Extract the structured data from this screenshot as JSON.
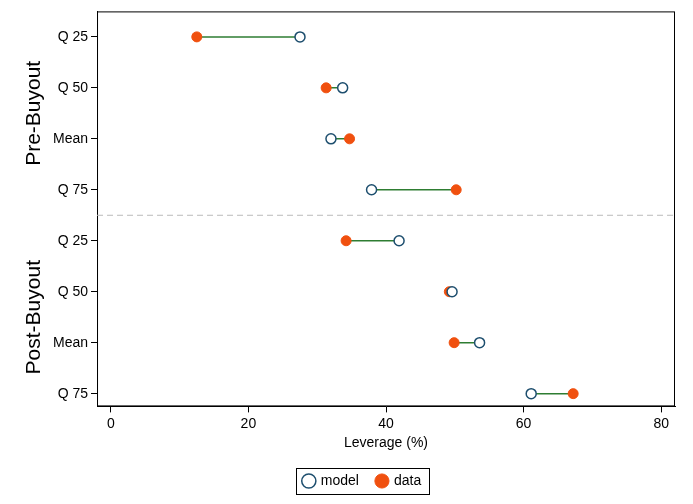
{
  "chart_data": {
    "type": "dumbbell",
    "orientation": "horizontal",
    "x_label": "Leverage (%)",
    "groups": [
      {
        "name": "Pre-Buyout",
        "categories": [
          "Q 25",
          "Q 50",
          "Mean",
          "Q 75"
        ]
      },
      {
        "name": "Post-Buyout",
        "categories": [
          "Q 25",
          "Q 50",
          "Mean",
          "Q 75"
        ]
      }
    ],
    "series": [
      {
        "name": "data",
        "color": "#f0500f",
        "marker": "filled_circle",
        "values": [
          12.5,
          31.3,
          34.7,
          50.2,
          34.2,
          49.2,
          49.9,
          67.2
        ]
      },
      {
        "name": "model",
        "color": "#1d4e6e",
        "marker": "hollow_circle",
        "values": [
          27.5,
          33.7,
          32.0,
          37.9,
          41.9,
          49.6,
          53.6,
          61.1
        ]
      }
    ],
    "xlim": [
      -2,
      82
    ],
    "xticks": [
      0,
      20,
      40,
      60,
      80
    ],
    "grid": false,
    "legend": "bottom"
  }
}
